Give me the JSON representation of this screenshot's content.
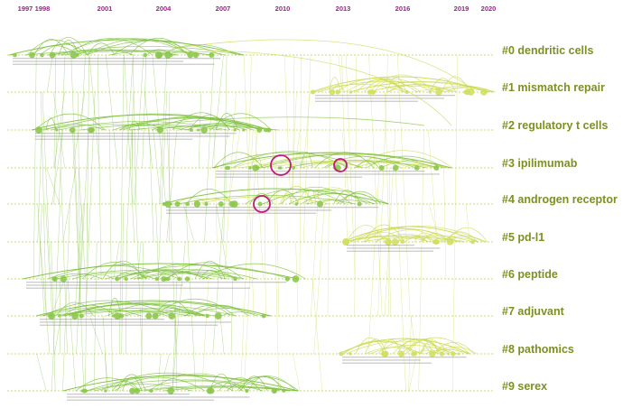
{
  "timeline": {
    "years": [
      "1997",
      "1998",
      "2001",
      "2004",
      "2007",
      "2010",
      "2013",
      "2016",
      "2019",
      "2020"
    ]
  },
  "clusters": [
    {
      "label": "#0 dendritic cells"
    },
    {
      "label": "#1 mismatch repair"
    },
    {
      "label": "#2 regulatory t cells"
    },
    {
      "label": "#3 ipilimumab"
    },
    {
      "label": "#4 androgen receptor"
    },
    {
      "label": "#5 pd-l1"
    },
    {
      "label": "#6 peptide"
    },
    {
      "label": "#7 adjuvant"
    },
    {
      "label": "#8 pathomics"
    },
    {
      "label": "#9 serex"
    }
  ],
  "colors": {
    "year_text": "#9b1f8a",
    "cluster_text": "#7f8f22",
    "early_link": "#7cbf3a",
    "late_link": "#c9d94a",
    "burst_ring": "#c2187a",
    "dashed_line": "#b9d23c"
  }
}
